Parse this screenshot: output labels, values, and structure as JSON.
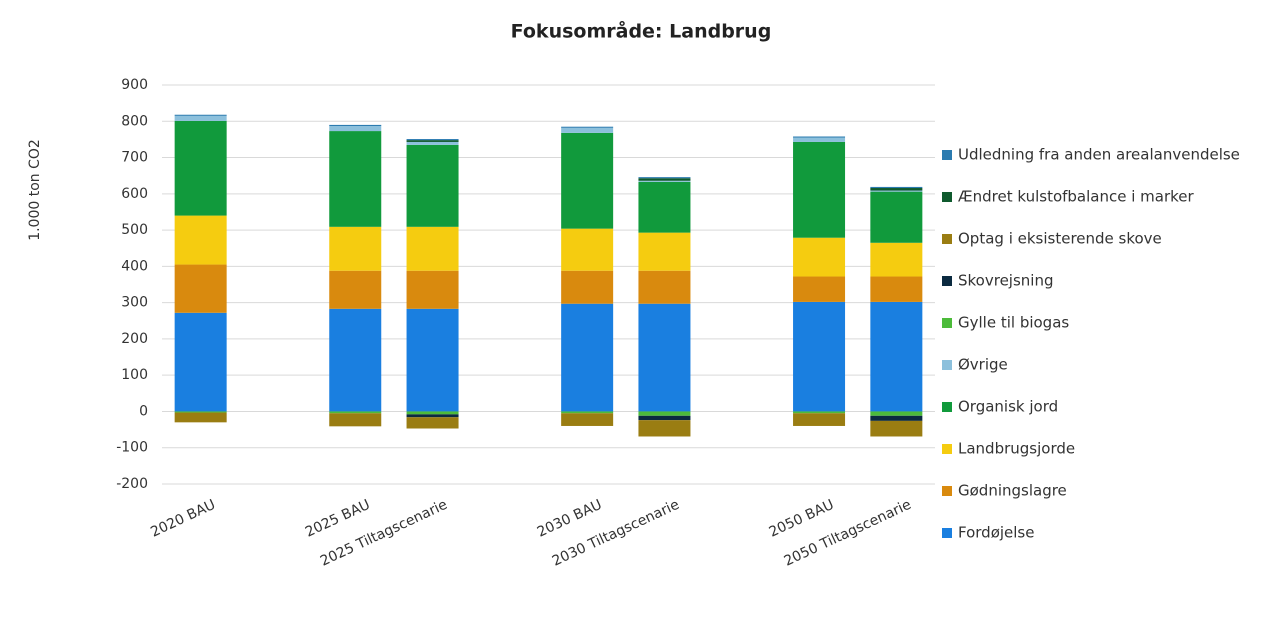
{
  "chart_data": {
    "type": "stacked_bar",
    "title": "Fokusområde: Landbrug",
    "y_label": "1.000 ton CO2",
    "categories": [
      "2020 BAU",
      null,
      "2025 BAU",
      "2025 Tiltagscenarie",
      null,
      "2030 BAU",
      "2030 Tiltagscenarie",
      null,
      "2050 BAU",
      "2050 Tiltagscenarie"
    ],
    "series": [
      {
        "name": "Fordøjelse",
        "color": "#1a7fe0",
        "values": [
          272,
          null,
          283,
          283,
          null,
          297,
          297,
          null,
          302,
          302
        ]
      },
      {
        "name": "Gødningslagre",
        "color": "#d98a0e",
        "values": [
          133,
          null,
          105,
          105,
          null,
          91,
          91,
          null,
          70,
          70
        ]
      },
      {
        "name": "Landbrugsjorde",
        "color": "#f5cc10",
        "values": [
          135,
          null,
          121,
          121,
          null,
          116,
          105,
          null,
          107,
          93
        ]
      },
      {
        "name": "Organisk jord",
        "color": "#119a3c",
        "values": [
          261,
          null,
          264,
          226,
          null,
          264,
          140,
          null,
          264,
          141
        ]
      },
      {
        "name": "Øvrige",
        "color": "#8cc0dc",
        "values": [
          14,
          null,
          14,
          8,
          null,
          14,
          3,
          null,
          12,
          3
        ]
      },
      {
        "name": "Gylle til biogas",
        "color": "#4cbb3a",
        "values": [
          -3,
          null,
          -5,
          -8,
          null,
          -5,
          -12,
          null,
          -5,
          -12
        ]
      },
      {
        "name": "Skovrejsning",
        "color": "#0b2a40",
        "values": [
          0,
          null,
          0,
          -8,
          null,
          0,
          -12,
          null,
          0,
          -14
        ]
      },
      {
        "name": "Optag i eksisterende skove",
        "color": "#9a7d12",
        "values": [
          -27,
          null,
          -36,
          -31,
          null,
          -35,
          -45,
          null,
          -35,
          -43
        ]
      },
      {
        "name": "Ændret kulstofbalance i marker",
        "color": "#0f5a2e",
        "values": [
          0,
          null,
          0,
          5,
          null,
          0,
          7,
          null,
          0,
          7
        ]
      },
      {
        "name": "Udledning fra anden arealanvendelse",
        "color": "#2b7bb0",
        "values": [
          3,
          null,
          3,
          3,
          null,
          3,
          3,
          null,
          3,
          3
        ]
      }
    ],
    "ylim": [
      -200,
      900
    ],
    "yticks": [
      -200,
      -100,
      0,
      100,
      200,
      300,
      400,
      500,
      600,
      700,
      800,
      900
    ],
    "grid": true,
    "legend": "right"
  }
}
